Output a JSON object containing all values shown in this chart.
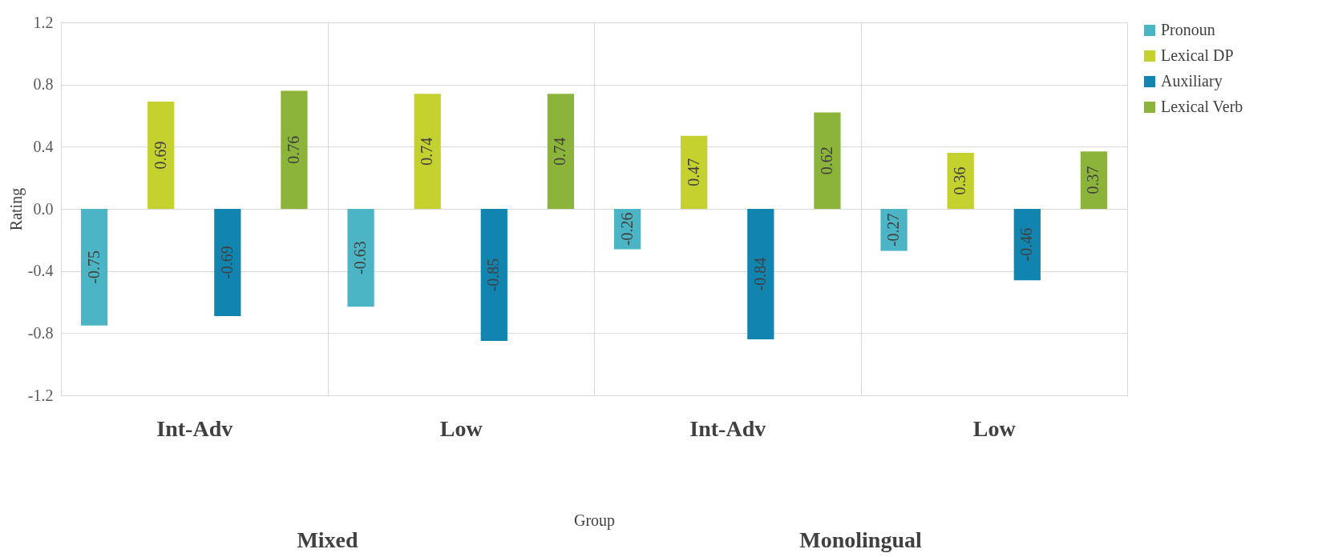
{
  "chart_data": {
    "type": "bar",
    "xlabel": "Group",
    "ylabel": "Rating",
    "categories": [
      "Int-Adv",
      "Low",
      "Int-Adv",
      "Low"
    ],
    "annotations": [
      "Mixed",
      "Monolingual"
    ],
    "series": [
      {
        "name": "Pronoun",
        "color": "#4bb5c5",
        "values": [
          -0.75,
          -0.63,
          -0.26,
          -0.27
        ]
      },
      {
        "name": "Lexical DP",
        "color": "#c5d12f",
        "values": [
          0.69,
          0.74,
          0.47,
          0.36
        ]
      },
      {
        "name": "Auxiliary",
        "color": "#1185b0",
        "values": [
          -0.69,
          -0.85,
          -0.84,
          -0.46
        ]
      },
      {
        "name": "Lexical Verb",
        "color": "#8cb43a",
        "values": [
          0.76,
          0.74,
          0.62,
          0.37
        ]
      }
    ],
    "ylim": [
      -1.2,
      1.2
    ],
    "yticks": [
      -1.2,
      -0.8,
      -0.4,
      {
        "value": 0,
        "label": "0.0"
      },
      0.4,
      0.8,
      1.2
    ],
    "grid": true,
    "legend": "right",
    "data_labels": true
  }
}
